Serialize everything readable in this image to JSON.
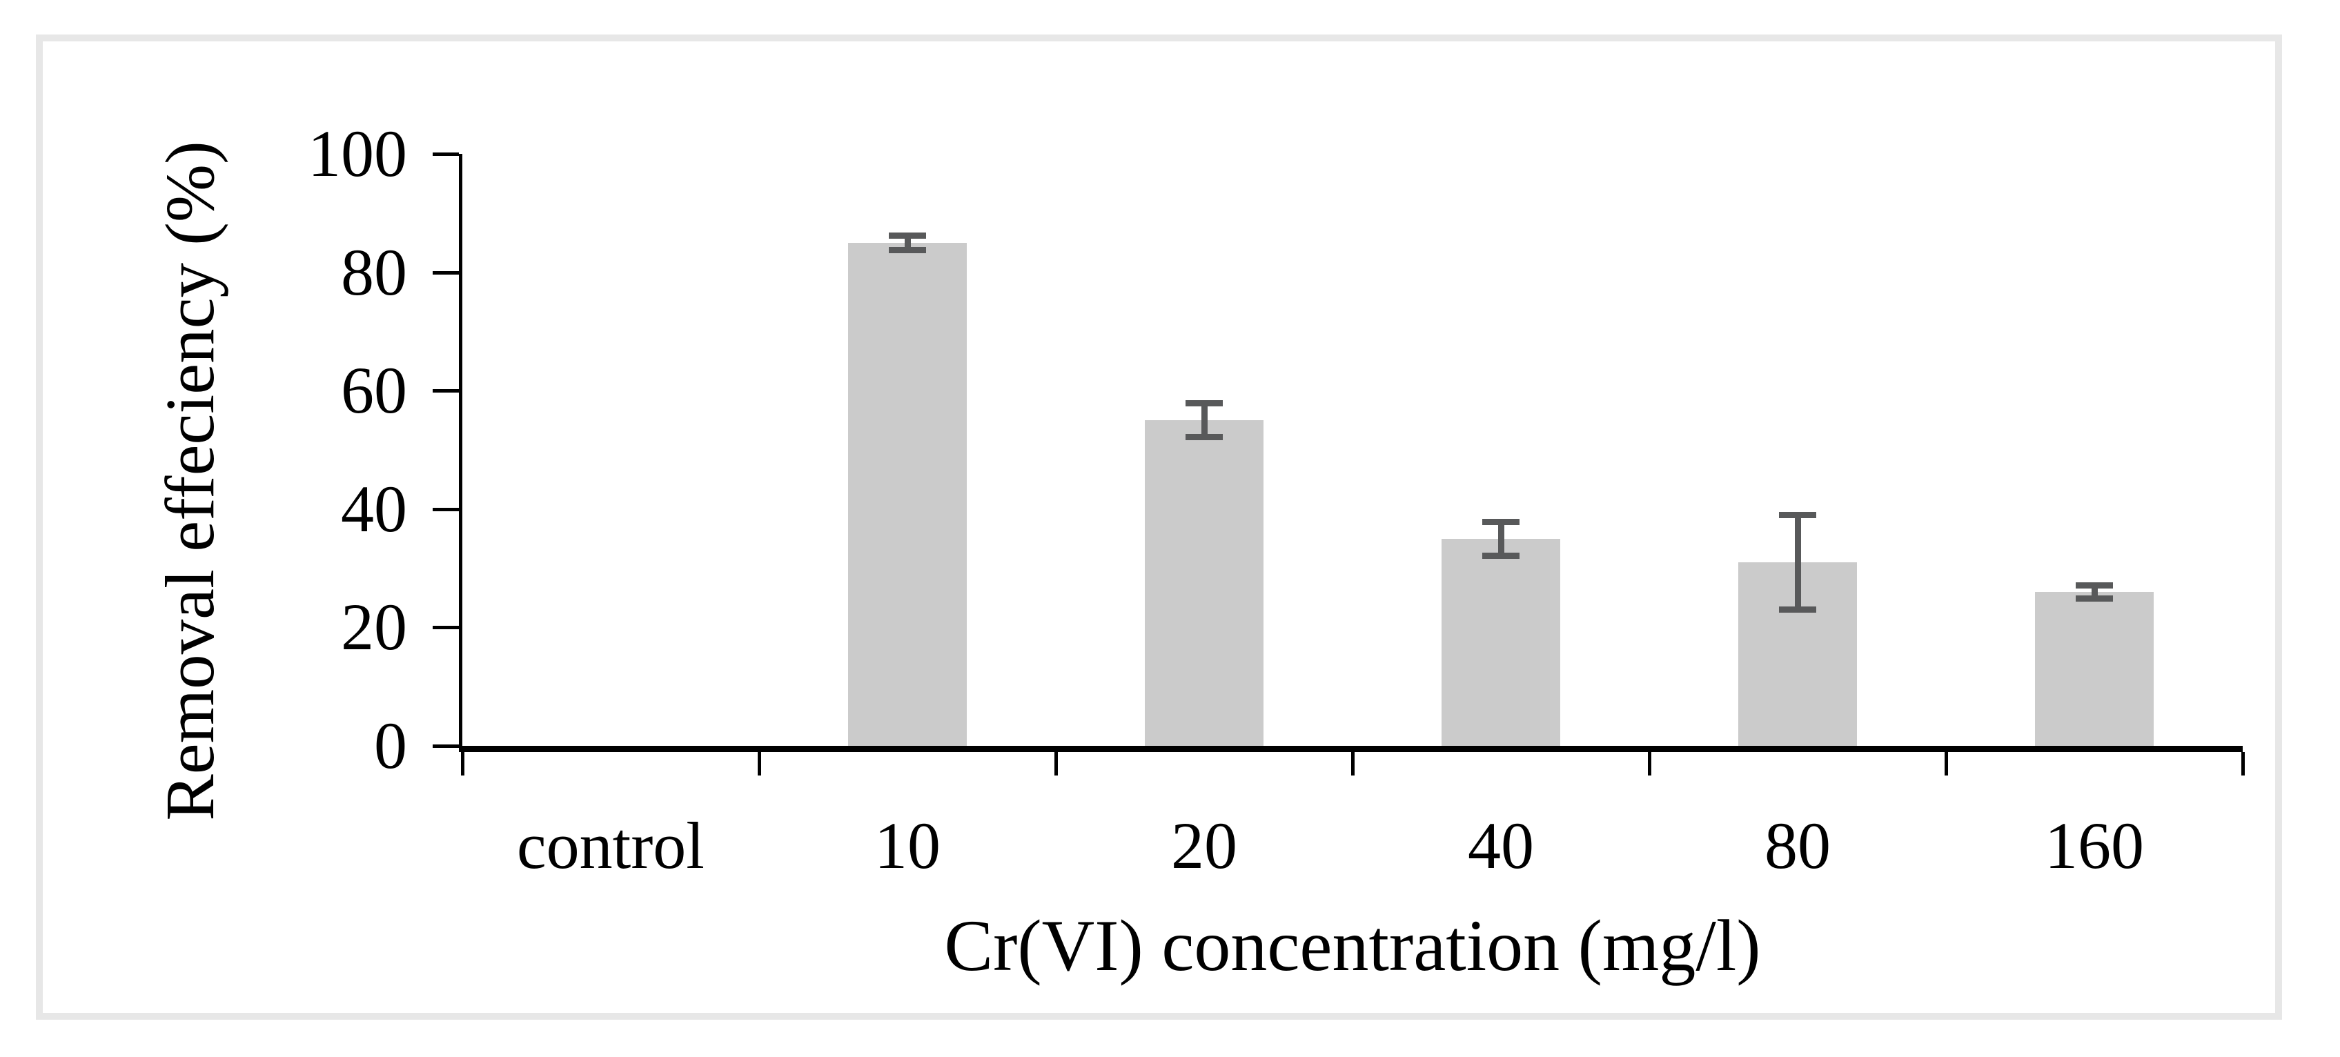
{
  "figure": {
    "background_color": "#ffffff",
    "frame_color": "#e7e7e7"
  },
  "chart_data": {
    "type": "bar",
    "title": "",
    "categories": [
      "control",
      "10",
      "20",
      "40",
      "80",
      "160"
    ],
    "values": [
      0,
      85,
      55,
      35,
      31,
      26
    ],
    "error_bars": [
      0,
      1.3,
      2.9,
      2.9,
      8,
      1.2
    ],
    "xlabel": "Cr(VI) concentration (mg/l)",
    "ylabel": "Removal effeciency (%)",
    "ylim": [
      0,
      100
    ],
    "y_ticks": [
      0,
      20,
      40,
      60,
      80,
      100
    ],
    "grid": false,
    "legend": false,
    "bar_color": "#cbcbcb",
    "error_bar_color": "#58595a",
    "axis_color": "#000000",
    "label_color": "#000000"
  }
}
